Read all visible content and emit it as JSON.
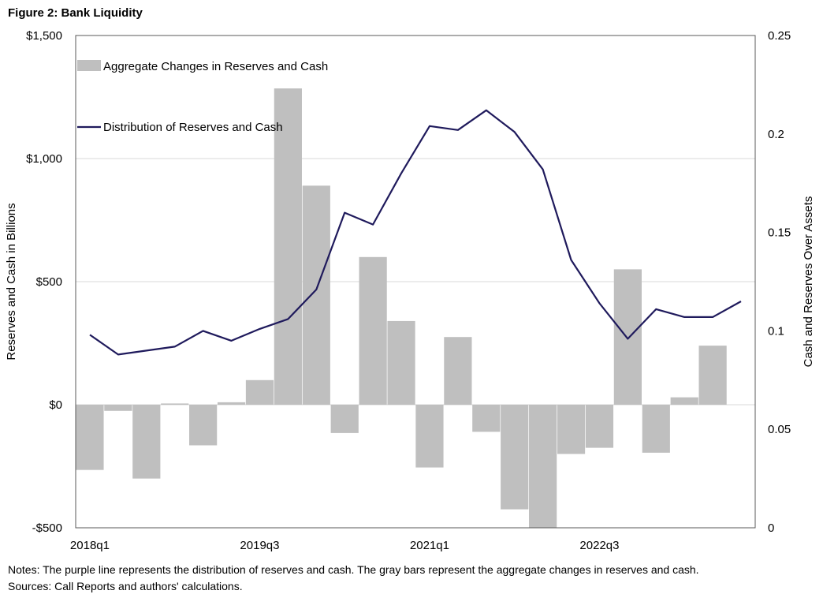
{
  "figure_title": "Figure 2: Bank Liquidity",
  "notes": "Notes: The purple line represents the distribution of reserves and cash. The gray bars represent the aggregate changes in reserves and cash.",
  "sources": "Sources: Call Reports and authors' calculations.",
  "chart_data": {
    "type": "bar+line",
    "categories": [
      "2018q1",
      "2018q2",
      "2018q3",
      "2018q4",
      "2019q1",
      "2019q2",
      "2019q3",
      "2019q4",
      "2020q1",
      "2020q2",
      "2020q3",
      "2020q4",
      "2021q1",
      "2021q2",
      "2021q3",
      "2021q4",
      "2022q1",
      "2022q2",
      "2022q3",
      "2022q4",
      "2023q1",
      "2023q2",
      "2023q3",
      "2023q4"
    ],
    "x_tick_labels": [
      "2018q1",
      "2019q3",
      "2021q1",
      "2022q3"
    ],
    "x_tick_indices": [
      0,
      6,
      12,
      18
    ],
    "series": [
      {
        "name": "Aggregate Changes in Reserves and Cash",
        "type": "bar",
        "axis": "left",
        "color": "#bfbfbf",
        "values": [
          -265,
          -25,
          -300,
          5,
          -165,
          10,
          100,
          1285,
          890,
          -115,
          600,
          340,
          -255,
          275,
          -110,
          -425,
          -500,
          -200,
          -175,
          550,
          -195,
          30,
          240,
          null
        ]
      },
      {
        "name": "Distribution of Reserves and Cash",
        "type": "line",
        "axis": "right",
        "color": "#1f1a5c",
        "values": [
          0.098,
          0.088,
          0.09,
          0.092,
          0.1,
          0.095,
          0.101,
          0.106,
          0.121,
          0.16,
          0.154,
          0.18,
          0.204,
          0.202,
          0.212,
          0.201,
          0.182,
          0.136,
          0.114,
          0.096,
          0.111,
          0.107,
          0.107,
          0.115
        ]
      }
    ],
    "y_left": {
      "label": "Reserves and Cash in Billions",
      "min": -500,
      "max": 1500,
      "ticks": [
        -500,
        0,
        500,
        1000,
        1500
      ],
      "tick_labels": [
        "-$500",
        "$0",
        "$500",
        "$1,000",
        "$1,500"
      ]
    },
    "y_right": {
      "label": "Cash and Reserves Over Assets",
      "min": 0,
      "max": 0.25,
      "ticks": [
        0,
        0.05,
        0.1,
        0.15,
        0.2,
        0.25
      ],
      "tick_labels": [
        "0",
        "0.05",
        "0.1",
        "0.15",
        "0.2",
        "0.25"
      ]
    },
    "gridlines": true,
    "legend_position": "top-left"
  }
}
